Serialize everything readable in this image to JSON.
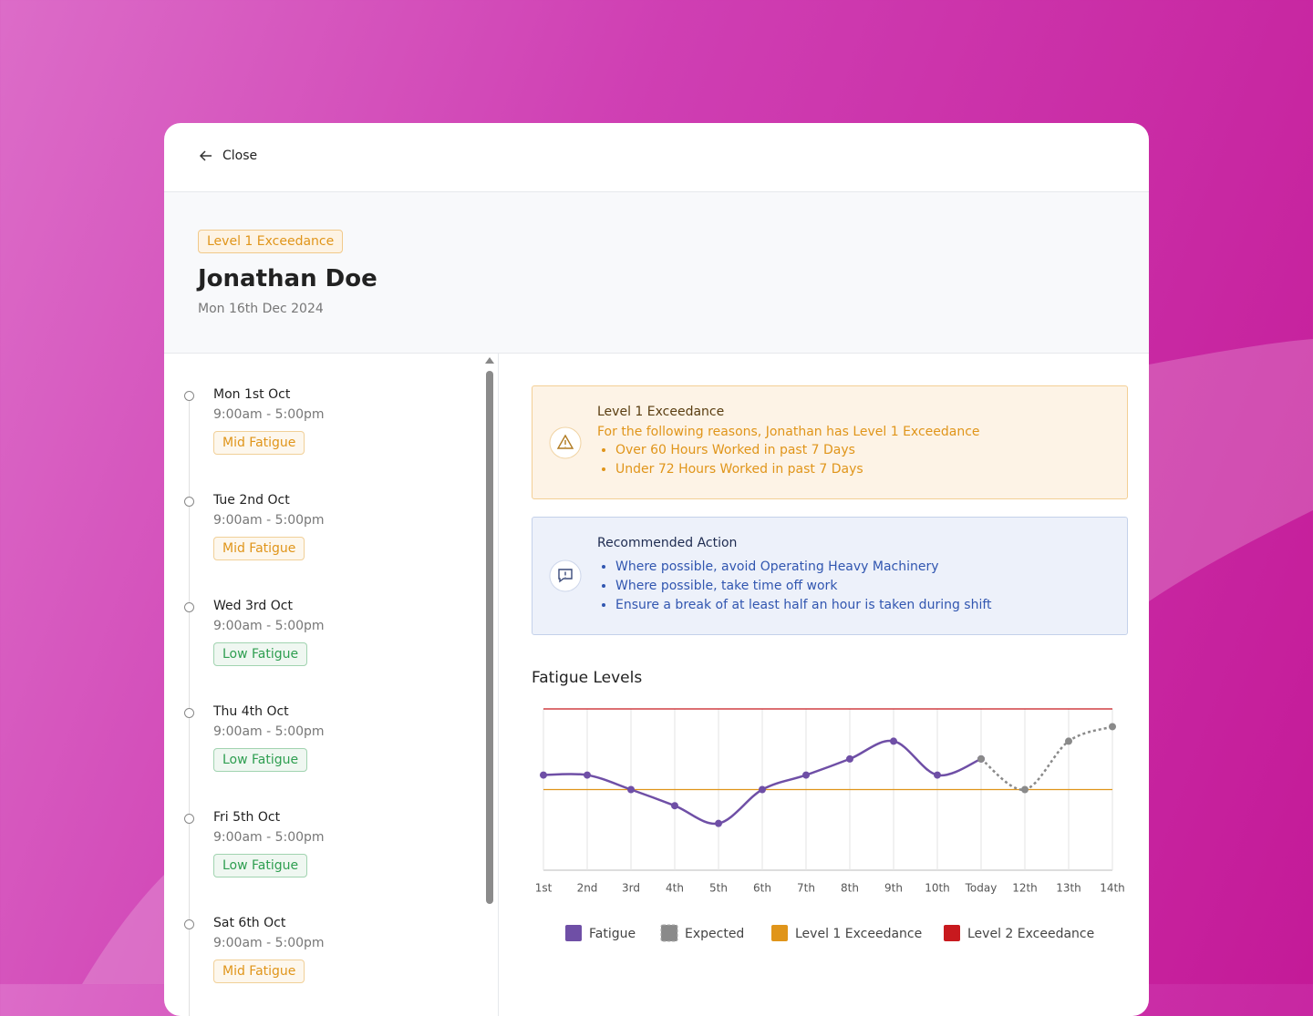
{
  "header": {
    "close": "Close"
  },
  "profile": {
    "badge": "Level 1 Exceedance",
    "name": "Jonathan Doe",
    "date": "Mon 16th Dec 2024"
  },
  "shifts": [
    {
      "day": "Mon 1st Oct",
      "time": "9:00am - 5:00pm",
      "fatigue": "Mid Fatigue",
      "color": "#e0951a"
    },
    {
      "day": "Tue 2nd Oct",
      "time": "9:00am - 5:00pm",
      "fatigue": "Mid Fatigue",
      "color": "#e0951a"
    },
    {
      "day": "Wed 3rd Oct",
      "time": "9:00am - 5:00pm",
      "fatigue": "Low Fatigue",
      "color": "#2e9e50"
    },
    {
      "day": "Thu 4th Oct",
      "time": "9:00am - 5:00pm",
      "fatigue": "Low Fatigue",
      "color": "#2e9e50"
    },
    {
      "day": "Fri 5th Oct",
      "time": "9:00am - 5:00pm",
      "fatigue": "Low Fatigue",
      "color": "#2e9e50"
    },
    {
      "day": "Sat 6th Oct",
      "time": "9:00am - 5:00pm",
      "fatigue": "Mid Fatigue",
      "color": "#e0951a"
    }
  ],
  "alert": {
    "title": "Level 1 Exceedance",
    "intro": "For the following reasons, Jonathan has Level 1 Exceedance",
    "reasons": [
      "Over 60 Hours Worked in past 7 Days",
      "Under 72 Hours Worked in past 7 Days"
    ]
  },
  "action": {
    "title": "Recommended Action",
    "items": [
      "Where possible, avoid Operating Heavy Machinery",
      "Where possible, take time off work",
      "Ensure a break of at least half an hour is taken during shift"
    ]
  },
  "chart_data": {
    "type": "line",
    "title": "Fatigue Levels",
    "categories": [
      "1st",
      "2nd",
      "3rd",
      "4th",
      "5th",
      "6th",
      "7th",
      "8th",
      "9th",
      "10th",
      "Today",
      "12th",
      "13th",
      "14th"
    ],
    "series": [
      {
        "name": "Fatigue",
        "color": "#6f4fa6",
        "values": [
          59,
          59,
          50,
          40,
          29,
          50,
          59,
          69,
          80,
          59,
          69,
          null,
          null,
          null
        ]
      },
      {
        "name": "Expected",
        "color": "#8a8a8a",
        "dashed": true,
        "values": [
          null,
          null,
          null,
          null,
          null,
          null,
          null,
          null,
          null,
          null,
          69,
          50,
          80,
          89
        ]
      }
    ],
    "thresholds": [
      {
        "name": "Level 1 Exceedance",
        "color": "#e0951a",
        "value": 50
      },
      {
        "name": "Level 2 Exceedance",
        "color": "#c8191e",
        "value": 100
      }
    ],
    "ylim": [
      0,
      100
    ],
    "grid": true
  }
}
